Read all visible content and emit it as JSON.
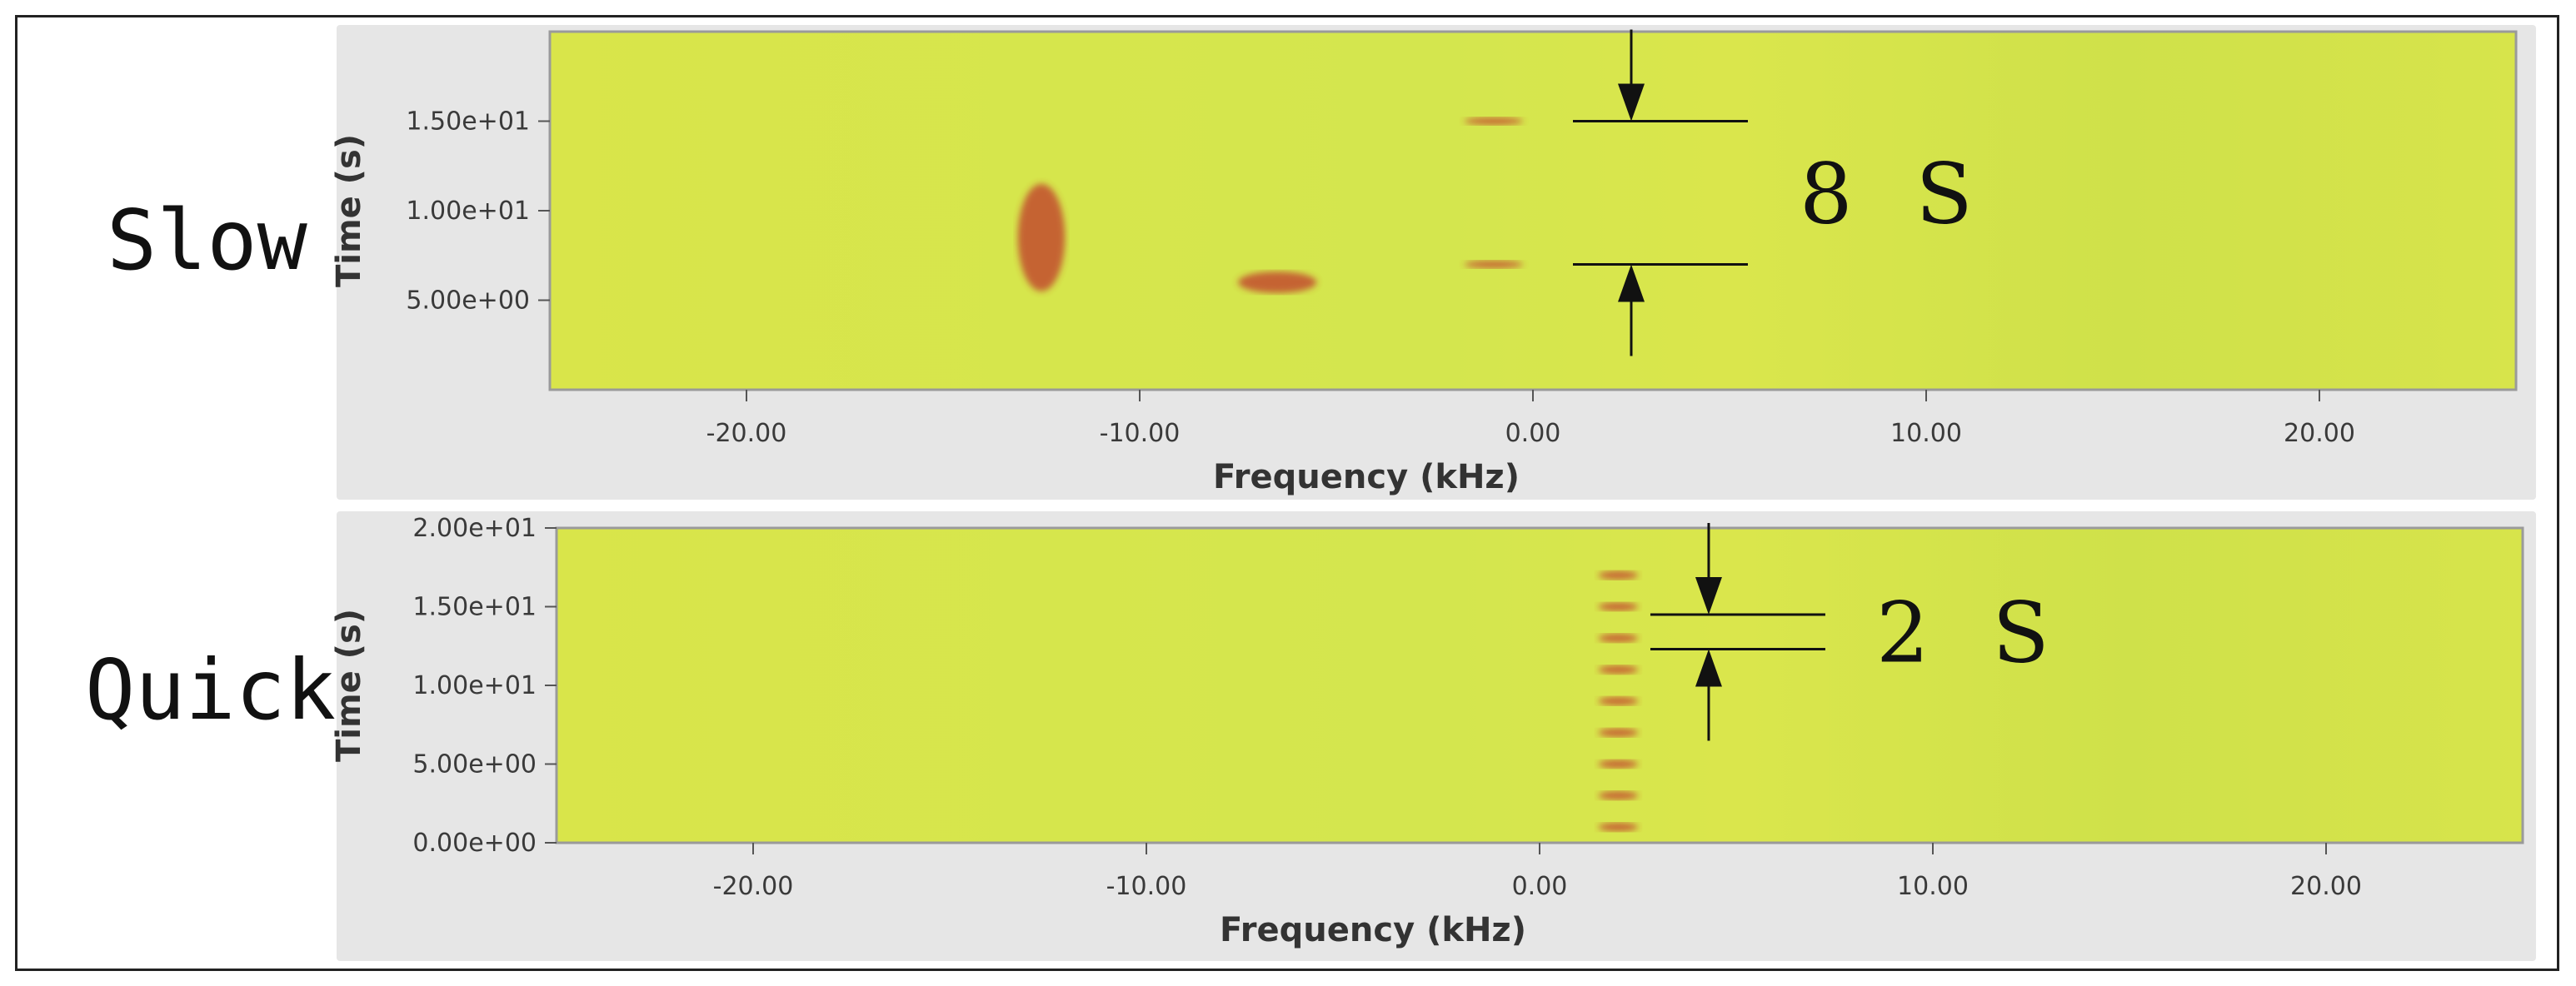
{
  "labels": {
    "slow": "Slow",
    "quick": "Quick"
  },
  "annotations": {
    "slow_interval": "8 S",
    "quick_interval": "2 S"
  },
  "colors": {
    "background": "#dfe84a",
    "signal": "#c0392b",
    "panel": "#e6e6e6"
  },
  "chart_data": [
    {
      "type": "heatmap",
      "name": "slow",
      "xlabel": "Frequency (kHz)",
      "ylabel": "Time (s)",
      "xlim": [
        -25,
        25
      ],
      "ylim": [
        0,
        20
      ],
      "xticks": [
        -20,
        -10,
        0,
        10,
        20
      ],
      "xtick_labels": [
        "-20.00",
        "-10.00",
        "0.00",
        "10.00",
        "20.00"
      ],
      "yticks": [
        5,
        10,
        15
      ],
      "ytick_labels": [
        "5.00e+00",
        "1.00e+01",
        "1.50e+01"
      ],
      "bursts": [
        {
          "freq_khz": -12.5,
          "time_s": 8.5,
          "width_khz": 1.2,
          "height_s": 6.0
        },
        {
          "freq_khz": -6.5,
          "time_s": 6.0,
          "width_khz": 2.0,
          "height_s": 1.2
        },
        {
          "freq_khz": -1.0,
          "time_s": 15.0,
          "width_khz": 1.5,
          "height_s": 0.4
        },
        {
          "freq_khz": -1.0,
          "time_s": 7.0,
          "width_khz": 1.5,
          "height_s": 0.4
        }
      ],
      "marker_times_s": [
        15.0,
        7.0
      ],
      "marker_freq_khz": 2.5,
      "interval_s": 8
    },
    {
      "type": "heatmap",
      "name": "quick",
      "xlabel": "Frequency (kHz)",
      "ylabel": "Time (s)",
      "xlim": [
        -25,
        25
      ],
      "ylim": [
        0,
        20
      ],
      "xticks": [
        -20,
        -10,
        0,
        10,
        20
      ],
      "xtick_labels": [
        "-20.00",
        "-10.00",
        "0.00",
        "10.00",
        "20.00"
      ],
      "yticks": [
        0,
        5,
        10,
        15,
        20
      ],
      "ytick_labels": [
        "0.00e+00",
        "5.00e+00",
        "1.00e+01",
        "1.50e+01",
        "2.00e+01"
      ],
      "bursts": [
        {
          "freq_khz": 2.0,
          "time_s": 1.0
        },
        {
          "freq_khz": 2.0,
          "time_s": 3.0
        },
        {
          "freq_khz": 2.0,
          "time_s": 5.0
        },
        {
          "freq_khz": 2.0,
          "time_s": 7.0
        },
        {
          "freq_khz": 2.0,
          "time_s": 9.0
        },
        {
          "freq_khz": 2.0,
          "time_s": 11.0
        },
        {
          "freq_khz": 2.0,
          "time_s": 13.0
        },
        {
          "freq_khz": 2.0,
          "time_s": 15.0
        },
        {
          "freq_khz": 2.0,
          "time_s": 17.0
        }
      ],
      "marker_times_s": [
        14.5,
        12.3
      ],
      "marker_freq_khz": 4.3,
      "interval_s": 2
    }
  ]
}
